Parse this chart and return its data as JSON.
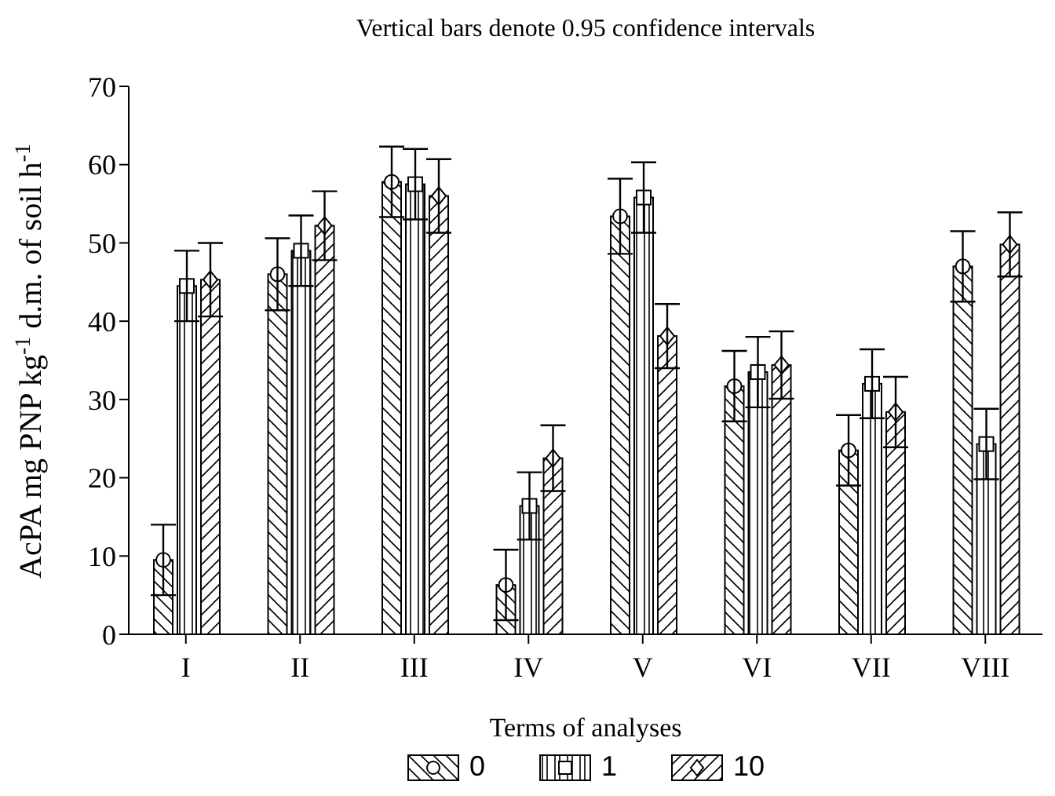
{
  "chart_data": {
    "type": "bar",
    "title": "Vertical bars denote 0.95 confidence intervals",
    "xlabel": "Terms of analyses",
    "ylabel": "AcPA mg PNP kg$^{-1}$ d.m. of soil h$^{-1}$",
    "categories": [
      "I",
      "II",
      "III",
      "IV",
      "V",
      "VI",
      "VII",
      "VIII"
    ],
    "series": [
      {
        "name": "0",
        "color": "#000000",
        "marker": "circle",
        "values": [
          9.5,
          46,
          57.8,
          6.3,
          53.4,
          31.7,
          23.5,
          47
        ],
        "errors": [
          4.5,
          4.6,
          4.5,
          4.5,
          4.8,
          4.5,
          4.5,
          4.5
        ]
      },
      {
        "name": "1",
        "color": "#000000",
        "marker": "square",
        "values": [
          44.5,
          49,
          57.5,
          16.4,
          55.8,
          33.5,
          32,
          24.3
        ],
        "errors": [
          4.5,
          4.5,
          4.5,
          4.3,
          4.5,
          4.5,
          4.4,
          4.5
        ]
      },
      {
        "name": "10",
        "color": "#000000",
        "marker": "diamond",
        "values": [
          45.3,
          52.2,
          56,
          22.5,
          38.1,
          34.4,
          28.4,
          49.8
        ],
        "errors": [
          4.7,
          4.4,
          4.7,
          4.2,
          4.1,
          4.3,
          4.5,
          4.1
        ]
      }
    ],
    "ylim": [
      0,
      70
    ],
    "yticks": [
      0,
      10,
      20,
      30,
      40,
      50,
      60,
      70
    ],
    "grid": false,
    "legend": "bottom"
  }
}
